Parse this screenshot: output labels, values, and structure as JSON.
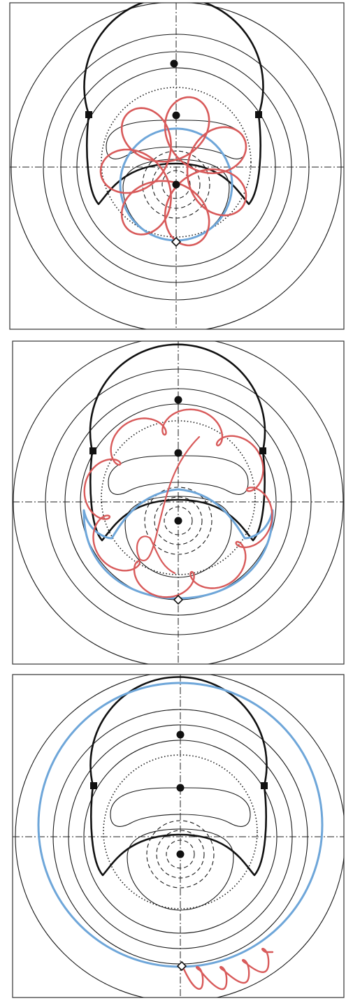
{
  "figure": {
    "panels": [
      {
        "id": "panel-1",
        "blue_orbit": "inner-circle",
        "red_orbit": "inner-epicycles"
      },
      {
        "id": "panel-2",
        "blue_orbit": "separatrix-like-crescent",
        "red_orbit": "outer-epicycles"
      },
      {
        "id": "panel-3",
        "blue_orbit": "large-outer-circle",
        "red_orbit": "short-loops-near-bottom"
      }
    ],
    "colors": {
      "contour": "#1a1a1a",
      "separatrix": "#111111",
      "axis": "#222222",
      "blue_orbit": "#6ea6d9",
      "red_orbit": "#d85a5a",
      "background": "#ffffff",
      "panel_border": "#333333"
    },
    "markers": {
      "critical_point": "filled-circle",
      "saddle": "filled-square",
      "start": "diamond"
    }
  }
}
